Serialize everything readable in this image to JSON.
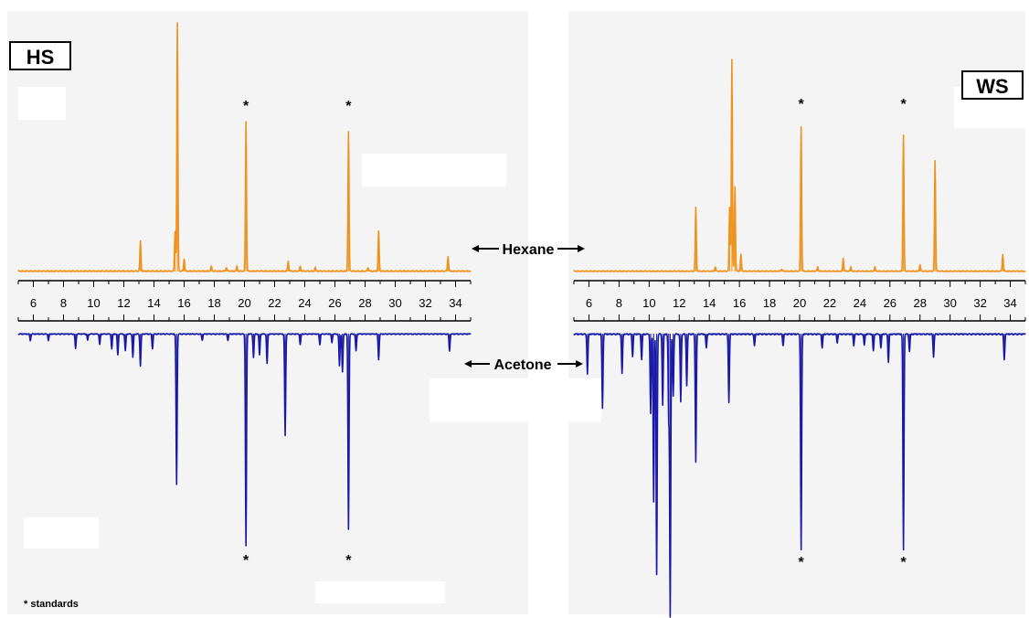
{
  "panel_labels": {
    "left": "HS",
    "right": "WS"
  },
  "solvent_labels": {
    "hexane": "Hexane",
    "acetone": "Acetone"
  },
  "footnote": "* standards",
  "standard_marker": "*",
  "colors": {
    "hexane": "#f0931e",
    "acetone": "#1a1aa8",
    "axis": "#000000",
    "panel_bg": "#f4f4f4"
  },
  "chart_data": [
    {
      "type": "line",
      "panel": "HS",
      "x_ticks": [
        6,
        8,
        10,
        12,
        14,
        16,
        18,
        20,
        22,
        24,
        26,
        28,
        30,
        32,
        34
      ],
      "xlim": [
        5,
        35
      ],
      "standards_rt": [
        20.1,
        26.9
      ],
      "series": [
        {
          "name": "Hexane",
          "direction": "up",
          "peaks": [
            [
              13.1,
              12
            ],
            [
              15.4,
              16
            ],
            [
              15.55,
              100
            ],
            [
              16.0,
              5
            ],
            [
              17.8,
              2
            ],
            [
              18.8,
              1.5
            ],
            [
              19.5,
              2
            ],
            [
              20.1,
              60
            ],
            [
              22.9,
              4
            ],
            [
              23.7,
              2
            ],
            [
              24.7,
              1.5
            ],
            [
              26.9,
              56
            ],
            [
              28.2,
              1.5
            ],
            [
              28.9,
              16
            ],
            [
              33.5,
              6
            ]
          ]
        },
        {
          "name": "Acetone",
          "direction": "down",
          "peaks": [
            [
              5.8,
              3
            ],
            [
              7.0,
              3
            ],
            [
              8.8,
              7
            ],
            [
              9.6,
              3
            ],
            [
              10.4,
              5
            ],
            [
              11.2,
              7
            ],
            [
              11.6,
              10
            ],
            [
              12.1,
              8
            ],
            [
              12.6,
              11
            ],
            [
              13.1,
              15
            ],
            [
              13.9,
              7
            ],
            [
              15.5,
              71
            ],
            [
              17.2,
              3
            ],
            [
              18.9,
              3
            ],
            [
              20.1,
              100
            ],
            [
              20.6,
              11
            ],
            [
              21.0,
              10
            ],
            [
              21.5,
              14
            ],
            [
              22.7,
              48
            ],
            [
              23.7,
              5
            ],
            [
              25.0,
              5
            ],
            [
              25.8,
              4
            ],
            [
              26.3,
              15
            ],
            [
              26.5,
              18
            ],
            [
              26.9,
              92
            ],
            [
              27.4,
              8
            ],
            [
              28.9,
              12
            ],
            [
              33.6,
              8
            ]
          ]
        }
      ]
    },
    {
      "type": "line",
      "panel": "WS",
      "x_ticks": [
        6,
        8,
        10,
        12,
        14,
        16,
        18,
        20,
        22,
        24,
        26,
        28,
        30,
        32,
        34
      ],
      "xlim": [
        5,
        35
      ],
      "standards_rt": [
        20.1,
        26.9
      ],
      "series": [
        {
          "name": "Hexane",
          "direction": "up",
          "peaks": [
            [
              13.1,
              30
            ],
            [
              14.4,
              2
            ],
            [
              15.35,
              30
            ],
            [
              15.5,
              100
            ],
            [
              15.7,
              40
            ],
            [
              16.1,
              8
            ],
            [
              18.8,
              1
            ],
            [
              20.1,
              68
            ],
            [
              21.2,
              2
            ],
            [
              22.9,
              6
            ],
            [
              23.4,
              2
            ],
            [
              25.0,
              2
            ],
            [
              26.9,
              64
            ],
            [
              28.0,
              3
            ],
            [
              29.0,
              52
            ],
            [
              33.5,
              8
            ]
          ]
        },
        {
          "name": "Acetone",
          "direction": "down",
          "peaks": [
            [
              5.9,
              14
            ],
            [
              6.9,
              26
            ],
            [
              8.2,
              14
            ],
            [
              8.9,
              8
            ],
            [
              9.5,
              9
            ],
            [
              10.1,
              28
            ],
            [
              10.3,
              59
            ],
            [
              10.5,
              85
            ],
            [
              10.9,
              25
            ],
            [
              11.3,
              30
            ],
            [
              11.4,
              100
            ],
            [
              11.6,
              22
            ],
            [
              12.1,
              24
            ],
            [
              12.5,
              18
            ],
            [
              13.1,
              45
            ],
            [
              13.8,
              5
            ],
            [
              15.3,
              24
            ],
            [
              17.0,
              4
            ],
            [
              18.9,
              4
            ],
            [
              20.1,
              76
            ],
            [
              21.5,
              5
            ],
            [
              22.5,
              3
            ],
            [
              23.6,
              4
            ],
            [
              24.3,
              4
            ],
            [
              24.9,
              6
            ],
            [
              25.4,
              5
            ],
            [
              25.9,
              10
            ],
            [
              26.9,
              76
            ],
            [
              27.3,
              6
            ],
            [
              28.9,
              8
            ],
            [
              33.6,
              9
            ]
          ]
        }
      ]
    }
  ]
}
